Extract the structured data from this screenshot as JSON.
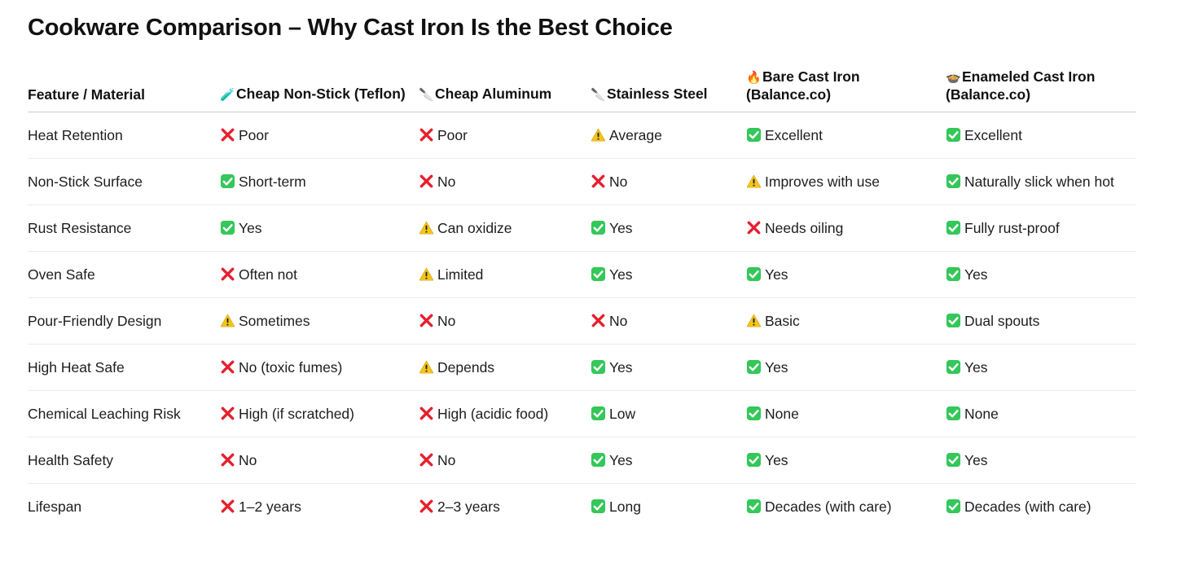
{
  "title": "Cookware Comparison – Why Cast Iron Is the Best Choice",
  "colors": {
    "check_bg": "#34c759",
    "cross": "#e5202e",
    "warning": "#f5c518"
  },
  "headers": [
    {
      "icon": "🧪",
      "icon_name": "test-tube-icon",
      "label": "Feature / Material",
      "has_icon": false
    },
    {
      "icon": "🧪",
      "icon_name": "test-tube-icon",
      "label": "Cheap Non-Stick (Teflon)",
      "has_icon": true
    },
    {
      "icon": "🔪",
      "icon_name": "knife-icon",
      "label": "Cheap Aluminum",
      "has_icon": true
    },
    {
      "icon": "🔪",
      "icon_name": "knife-icon",
      "label": "Stainless Steel",
      "has_icon": true
    },
    {
      "icon": "🔥",
      "icon_name": "fire-icon",
      "label": "Bare Cast Iron (Balance.co)",
      "has_icon": true
    },
    {
      "icon": "🍲",
      "icon_name": "pot-of-food-icon",
      "label": "Enameled Cast Iron (Balance.co)",
      "has_icon": true
    }
  ],
  "rows": [
    {
      "feature": "Heat Retention",
      "cells": [
        {
          "status": "cross",
          "text": "Poor"
        },
        {
          "status": "cross",
          "text": "Poor"
        },
        {
          "status": "warning",
          "text": "Average"
        },
        {
          "status": "check",
          "text": "Excellent"
        },
        {
          "status": "check",
          "text": "Excellent"
        }
      ]
    },
    {
      "feature": "Non-Stick Surface",
      "cells": [
        {
          "status": "check",
          "text": "Short-term"
        },
        {
          "status": "cross",
          "text": "No"
        },
        {
          "status": "cross",
          "text": "No"
        },
        {
          "status": "warning",
          "text": "Improves with use"
        },
        {
          "status": "check",
          "text": "Naturally slick when hot"
        }
      ]
    },
    {
      "feature": "Rust Resistance",
      "cells": [
        {
          "status": "check",
          "text": "Yes"
        },
        {
          "status": "warning",
          "text": "Can oxidize"
        },
        {
          "status": "check",
          "text": "Yes"
        },
        {
          "status": "cross",
          "text": "Needs oiling"
        },
        {
          "status": "check",
          "text": "Fully rust-proof"
        }
      ]
    },
    {
      "feature": "Oven Safe",
      "cells": [
        {
          "status": "cross",
          "text": "Often not"
        },
        {
          "status": "warning",
          "text": "Limited"
        },
        {
          "status": "check",
          "text": "Yes"
        },
        {
          "status": "check",
          "text": "Yes"
        },
        {
          "status": "check",
          "text": "Yes"
        }
      ]
    },
    {
      "feature": "Pour-Friendly Design",
      "cells": [
        {
          "status": "warning",
          "text": "Sometimes"
        },
        {
          "status": "cross",
          "text": "No"
        },
        {
          "status": "cross",
          "text": "No"
        },
        {
          "status": "warning",
          "text": "Basic"
        },
        {
          "status": "check",
          "text": "Dual spouts"
        }
      ]
    },
    {
      "feature": "High Heat Safe",
      "cells": [
        {
          "status": "cross",
          "text": "No (toxic fumes)"
        },
        {
          "status": "warning",
          "text": "Depends"
        },
        {
          "status": "check",
          "text": "Yes"
        },
        {
          "status": "check",
          "text": "Yes"
        },
        {
          "status": "check",
          "text": "Yes"
        }
      ]
    },
    {
      "feature": "Chemical Leaching Risk",
      "cells": [
        {
          "status": "cross",
          "text": "High (if scratched)"
        },
        {
          "status": "cross",
          "text": "High (acidic food)"
        },
        {
          "status": "check",
          "text": "Low"
        },
        {
          "status": "check",
          "text": "None"
        },
        {
          "status": "check",
          "text": "None"
        }
      ]
    },
    {
      "feature": "Health Safety",
      "cells": [
        {
          "status": "cross",
          "text": "No"
        },
        {
          "status": "cross",
          "text": "No"
        },
        {
          "status": "check",
          "text": "Yes"
        },
        {
          "status": "check",
          "text": "Yes"
        },
        {
          "status": "check",
          "text": "Yes"
        }
      ]
    },
    {
      "feature": "Lifespan",
      "cells": [
        {
          "status": "cross",
          "text": "1–2 years"
        },
        {
          "status": "cross",
          "text": "2–3 years"
        },
        {
          "status": "check",
          "text": "Long"
        },
        {
          "status": "check",
          "text": "Decades (with care)"
        },
        {
          "status": "check",
          "text": "Decades (with care)"
        }
      ]
    }
  ]
}
